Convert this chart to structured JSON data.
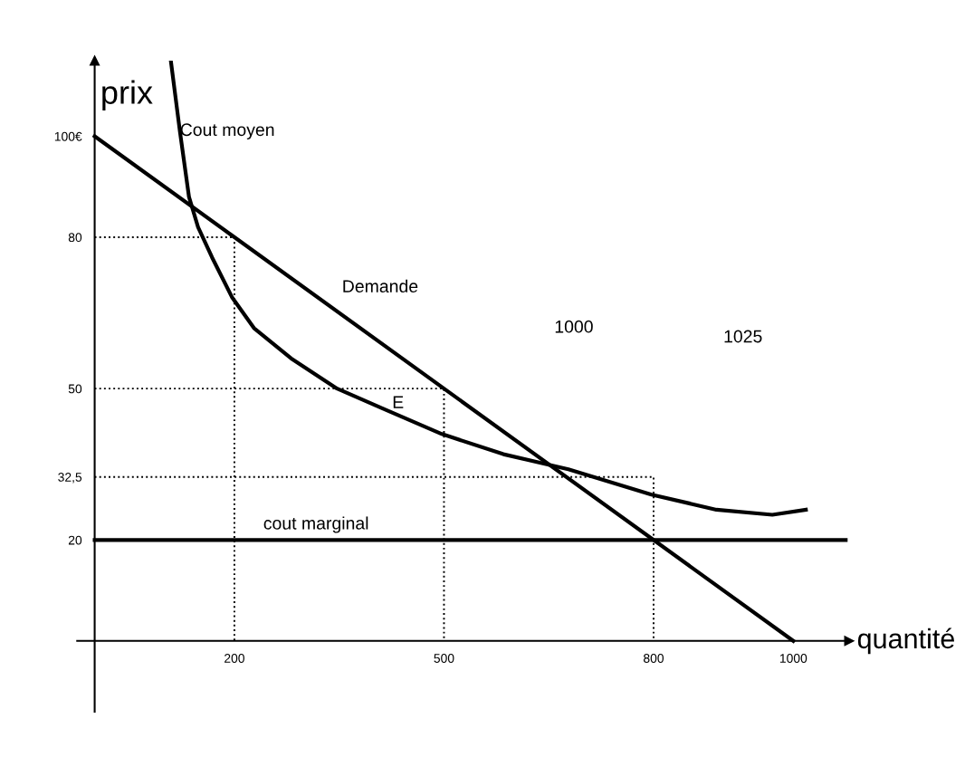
{
  "chart_data": {
    "type": "line",
    "xlabel": "quantité",
    "ylabel": "prix",
    "xlim": [
      -25,
      1080
    ],
    "ylim": [
      -14,
      115
    ],
    "xticks": [
      200,
      500,
      800,
      1000
    ],
    "yticks": [
      20,
      {
        "value": 32.5,
        "label": "32,5"
      },
      50,
      80,
      {
        "value": 100,
        "label": "100€"
      }
    ],
    "grid": false,
    "marker": "none",
    "series": [
      {
        "color": "#000000",
        "line_style": "solid",
        "x": [
          0,
          1000
        ],
        "values": [
          100,
          0
        ]
      },
      {
        "color": "#000000",
        "line_style": "solid",
        "x": [
          109,
          122,
          135,
          148,
          168,
          197,
          228,
          281,
          347,
          413,
          497,
          585,
          678,
          797,
          890,
          970,
          1018
        ],
        "values": [
          115,
          101,
          88,
          82,
          76,
          68,
          62,
          56,
          50,
          46,
          41,
          37,
          34,
          29,
          26,
          25,
          26
        ]
      },
      {
        "color": "#000000",
        "line_style": "solid",
        "x": [
          0,
          1075
        ],
        "values": [
          20,
          20
        ]
      },
      {
        "color": "#000000",
        "line_style": "dotted",
        "x": [
          0,
          200,
          200
        ],
        "values": [
          80,
          80,
          0
        ]
      },
      {
        "color": "#000000",
        "line_style": "dotted",
        "x": [
          0,
          500,
          500
        ],
        "values": [
          50,
          50,
          0
        ]
      },
      {
        "color": "#000000",
        "line_style": "dotted",
        "x": [
          0,
          800,
          800
        ],
        "values": [
          32.5,
          32.5,
          0
        ]
      }
    ],
    "annotations": [
      {
        "text": "Cout moyen",
        "x": 122,
        "y": 101
      },
      "Demande",
      "1000",
      "1025",
      "E",
      "cout marginal"
    ]
  }
}
